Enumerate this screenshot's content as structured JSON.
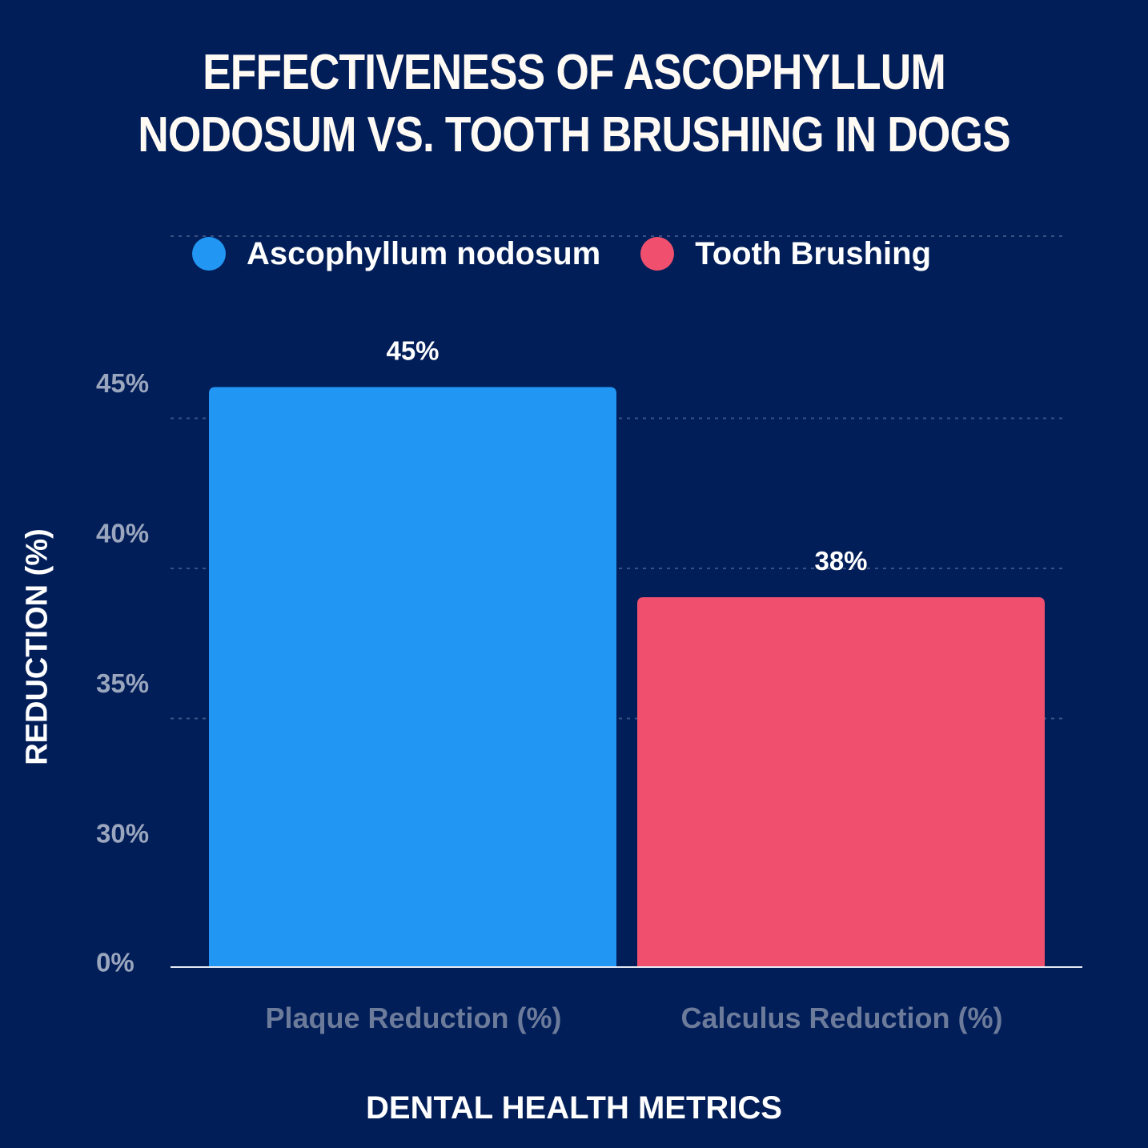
{
  "chart_data": {
    "type": "bar",
    "title_lines": [
      "EFFECTIVENESS OF ASCOPHYLLUM",
      "NODOSUM VS. TOOTH BRUSHING IN DOGS"
    ],
    "xlabel": "DENTAL HEALTH METRICS",
    "ylabel": "REDUCTION (%)",
    "categories": [
      "Plaque Reduction (%)",
      "Calculus Reduction (%)"
    ],
    "series": [
      {
        "name": "Ascophyllum nodosum",
        "color": "#2196f3"
      },
      {
        "name": "Tooth Brushing",
        "color": "#f0506e"
      }
    ],
    "bars": [
      {
        "category": "Plaque Reduction (%)",
        "series": "Ascophyllum nodosum",
        "value": 45,
        "label": "45%"
      },
      {
        "category": "Calculus Reduction (%)",
        "series": "Tooth Brushing",
        "value": 38,
        "label": "38%"
      }
    ],
    "y_ticks": [
      {
        "value": 0,
        "label": "0%"
      },
      {
        "value": 30,
        "label": "30%"
      },
      {
        "value": 35,
        "label": "35%"
      },
      {
        "value": 40,
        "label": "40%"
      },
      {
        "value": 45,
        "label": "45%"
      }
    ],
    "y_axis_break": true,
    "ylim": [
      0,
      50
    ],
    "grid": true,
    "legend_position": "top"
  }
}
